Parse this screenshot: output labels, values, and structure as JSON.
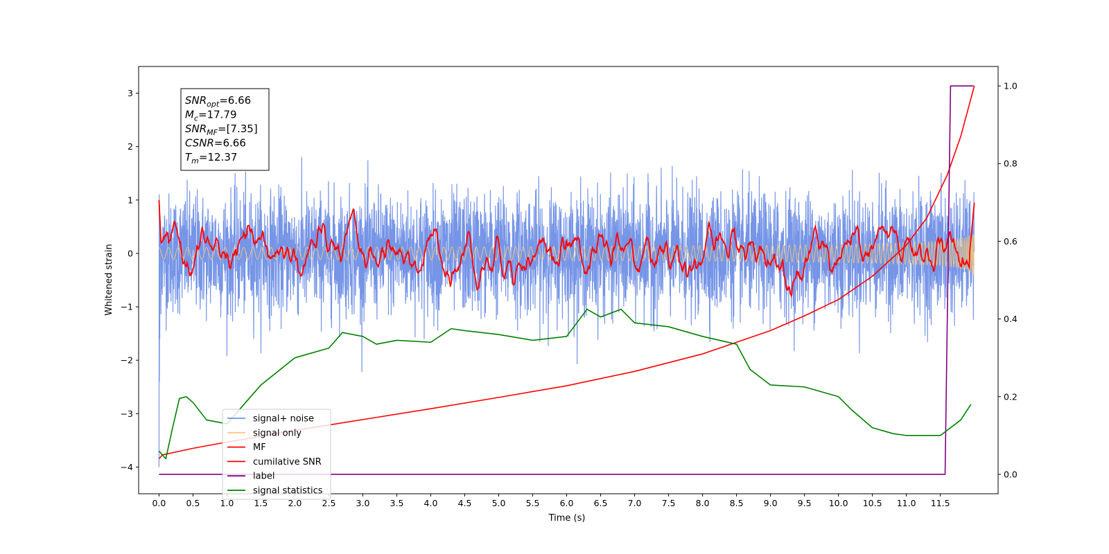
{
  "chart_data": {
    "type": "line",
    "xlabel": "Time (s)",
    "ylabel": "Whitened strain",
    "xlim": [
      -0.3,
      12.35
    ],
    "ylim": [
      -4.5,
      3.5
    ],
    "y2lim": [
      -0.05,
      1.05
    ],
    "x_ticks": [
      "0.0",
      "0.5",
      "1.0",
      "1.5",
      "2.0",
      "2.5",
      "3.0",
      "3.5",
      "4.0",
      "4.5",
      "5.0",
      "5.5",
      "6.0",
      "6.5",
      "7.0",
      "7.5",
      "8.0",
      "8.5",
      "9.0",
      "9.5",
      "10.0",
      "10.5",
      "11.0",
      "11.5"
    ],
    "y_ticks": [
      "3",
      "2",
      "1",
      "0",
      "−1",
      "−2",
      "−3",
      "−4"
    ],
    "y2_ticks": [
      "1.0",
      "0.8",
      "0.6",
      "0.4",
      "0.2",
      "0.0"
    ],
    "grid": false,
    "legend_position": "lower-left",
    "annotation": {
      "lines": [
        {
          "base": "SNR",
          "sub": "opt",
          "value": "=6.66"
        },
        {
          "base": "M",
          "sub": "c",
          "value": "=17.79"
        },
        {
          "base": "SNR",
          "sub": "MF",
          "value": "=[7.35]"
        },
        {
          "base": "CSNR",
          "sub": "",
          "value": "=6.66"
        },
        {
          "base": "T",
          "sub": "m",
          "value": "=12.37"
        }
      ]
    },
    "series": [
      {
        "name": "signal+ noise",
        "color": "#6f8fe6",
        "axis": "left",
        "kind": "noise",
        "x_range": [
          0,
          12
        ],
        "amplitude": 0.55
      },
      {
        "name": "signal only",
        "color": "#f5c97a",
        "axis": "left",
        "kind": "chirp",
        "x_range": [
          0,
          12
        ],
        "amplitude": 0.2
      },
      {
        "name": "MF",
        "color": "#ff0000",
        "axis": "left",
        "kind": "wiggle",
        "x_range": [
          0,
          12
        ],
        "amplitude": 0.15
      },
      {
        "name": "cumilative SNR",
        "color": "#ff0000",
        "axis": "right",
        "x": [
          0.0,
          0.05,
          0.5,
          1.0,
          2.0,
          3.0,
          4.0,
          5.0,
          6.0,
          7.0,
          8.0,
          9.0,
          9.5,
          10.0,
          10.5,
          11.0,
          11.3,
          11.6,
          11.8,
          12.0
        ],
        "y": [
          0.04,
          0.05,
          0.067,
          0.083,
          0.113,
          0.141,
          0.169,
          0.198,
          0.228,
          0.265,
          0.31,
          0.37,
          0.408,
          0.45,
          0.51,
          0.59,
          0.66,
          0.77,
          0.87,
          1.0
        ]
      },
      {
        "name": "label",
        "color": "#800080",
        "axis": "right",
        "x": [
          0.0,
          11.57,
          11.65,
          11.99
        ],
        "y": [
          0.0,
          0.0,
          1.0,
          1.0
        ]
      },
      {
        "name": "signal statistics",
        "color": "#008000",
        "axis": "right",
        "x": [
          0.0,
          0.1,
          0.2,
          0.3,
          0.4,
          0.5,
          0.7,
          1.0,
          1.5,
          2.0,
          2.2,
          2.5,
          2.7,
          3.0,
          3.2,
          3.5,
          4.0,
          4.3,
          4.5,
          5.0,
          5.5,
          6.0,
          6.3,
          6.5,
          6.8,
          7.0,
          7.5,
          8.0,
          8.5,
          8.7,
          9.0,
          9.5,
          10.0,
          10.2,
          10.5,
          10.8,
          11.0,
          11.5,
          11.8,
          11.95
        ],
        "y": [
          0.06,
          0.04,
          0.12,
          0.195,
          0.2,
          0.185,
          0.14,
          0.13,
          0.23,
          0.3,
          0.31,
          0.325,
          0.365,
          0.355,
          0.335,
          0.345,
          0.34,
          0.375,
          0.37,
          0.36,
          0.345,
          0.355,
          0.425,
          0.405,
          0.425,
          0.39,
          0.38,
          0.355,
          0.335,
          0.27,
          0.23,
          0.225,
          0.2,
          0.165,
          0.12,
          0.105,
          0.1,
          0.1,
          0.14,
          0.18
        ]
      }
    ]
  }
}
